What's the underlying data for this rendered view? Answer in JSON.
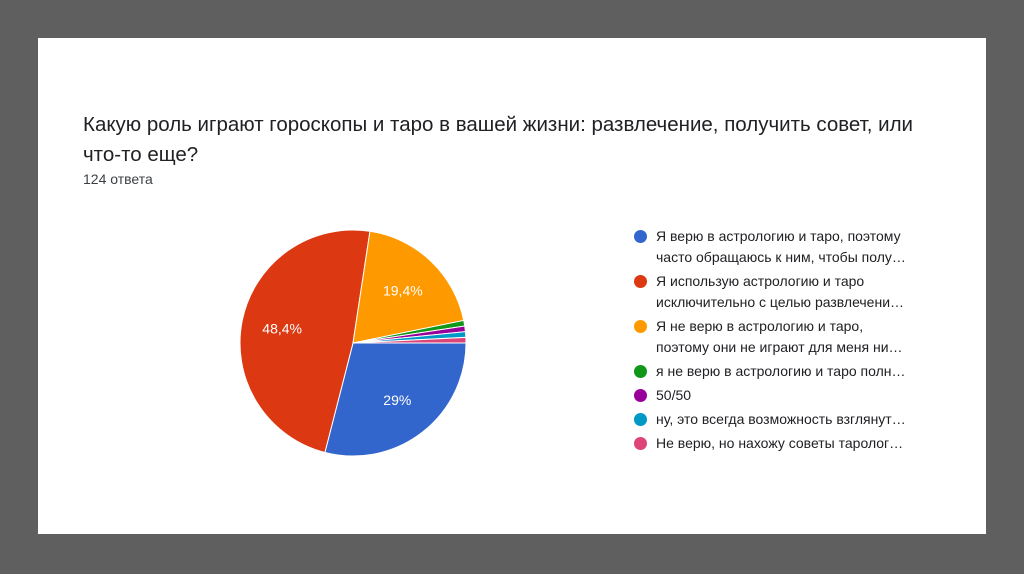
{
  "header": {
    "title": "Какую роль играют гороскопы и таро в вашей жизни: развлечение, получить совет, или что-то еще?",
    "response_count": "124 ответа"
  },
  "chart_data": {
    "type": "pie",
    "start_angle_deg": 90,
    "direction": "clockwise",
    "slices": [
      {
        "label": "Я верю в астрологию и таро, поэтому\nчасто обращаюсь к ним, чтобы полу…",
        "value": 29,
        "display": "29%",
        "color": "#3366cc"
      },
      {
        "label": "Я использую астрологию и таро\nисключительно с целью развлечени…",
        "value": 48.4,
        "display": "48,4%",
        "color": "#dc3912"
      },
      {
        "label": "Я не верю в астрологию и таро,\nпоэтому они не играют для меня ни…",
        "value": 19.4,
        "display": "19,4%",
        "color": "#ff9900"
      },
      {
        "label": "я не верю в астрологию и таро полн…",
        "value": 0.8,
        "display": "",
        "color": "#109618"
      },
      {
        "label": "50/50",
        "value": 0.8,
        "display": "",
        "color": "#990099"
      },
      {
        "label": "ну, это всегда возможность взглянут…",
        "value": 0.8,
        "display": "",
        "color": "#0099c6"
      },
      {
        "label": "Не верю, но нахожу советы таролог…",
        "value": 0.8,
        "display": "",
        "color": "#dd4477"
      }
    ]
  }
}
